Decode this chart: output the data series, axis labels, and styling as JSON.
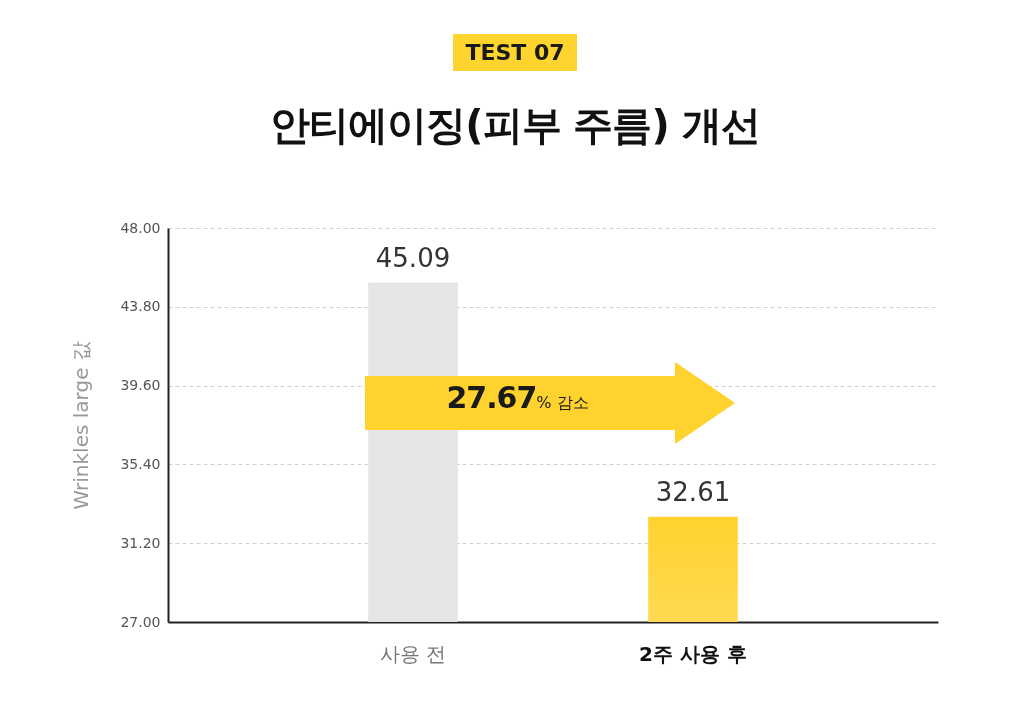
{
  "chart_data": {
    "type": "bar",
    "subtitle": "TEST 07",
    "title": "안티에이징(피부 주름) 개선",
    "ylabel": "Wrinkles large 값",
    "categories": [
      "사용 전",
      "2주 사용 후"
    ],
    "values": [
      45.09,
      32.61
    ],
    "colors": [
      "#e5e5e5",
      "#ffd22e"
    ],
    "ylim": [
      27,
      48
    ],
    "yticks": [
      {
        "value": 27,
        "label": "27.00"
      },
      {
        "value": 31.2,
        "label": "31.20"
      },
      {
        "value": 35.4,
        "label": "35.40"
      },
      {
        "value": 39.6,
        "label": "39.60"
      },
      {
        "value": 43.8,
        "label": "43.80"
      },
      {
        "value": 48,
        "label": "48.00"
      }
    ],
    "grid": "y",
    "data_labels": true,
    "annotations": [
      "27.67% 감소"
    ]
  }
}
